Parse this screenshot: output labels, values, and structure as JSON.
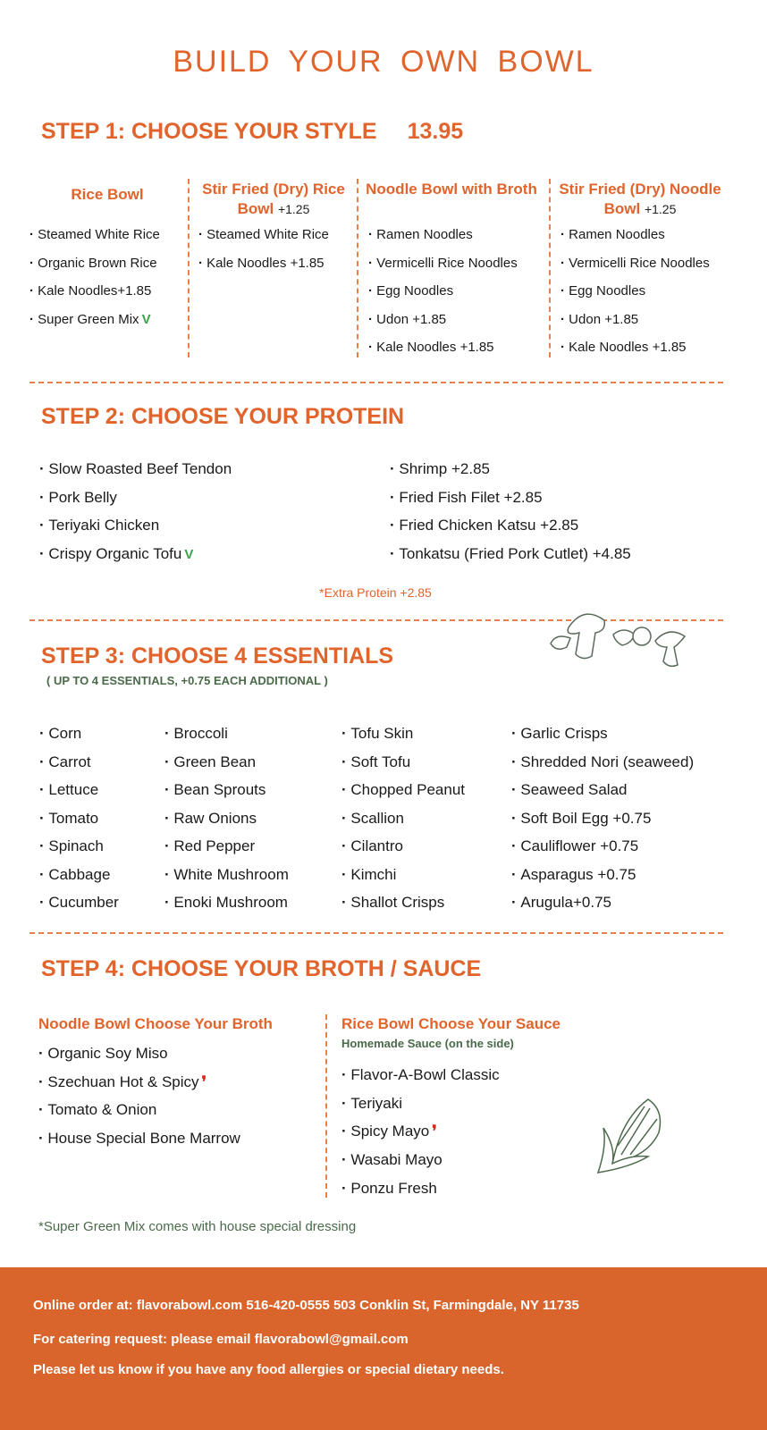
{
  "title": "BUILD YOUR OWN BOWL",
  "step1": {
    "heading": "STEP 1: CHOOSE YOUR STYLE",
    "price": "13.95",
    "columns": [
      {
        "title": "Rice Bowl",
        "add": "",
        "items": [
          "Steamed White Rice",
          "Organic Brown Rice",
          "Kale Noodles+1.85",
          "Super Green Mix"
        ]
      },
      {
        "title": "Stir Fried (Dry) Rice Bowl",
        "add": "+1.25",
        "items": [
          "Steamed White Rice",
          "Kale Noodles +1.85"
        ]
      },
      {
        "title": "Noodle Bowl with Broth",
        "add": "",
        "items": [
          "Ramen Noodles",
          "Vermicelli Rice Noodles",
          "Egg Noodles",
          "Udon +1.85",
          "Kale Noodles +1.85"
        ]
      },
      {
        "title": "Stir Fried (Dry) Noodle Bowl",
        "add": "+1.25",
        "items": [
          "Ramen Noodles",
          "Vermicelli Rice Noodles",
          "Egg Noodles",
          "Udon +1.85",
          "Kale Noodles +1.85"
        ]
      }
    ]
  },
  "step2": {
    "heading": "STEP 2: CHOOSE YOUR PROTEIN",
    "left": [
      "Slow Roasted Beef Tendon",
      "Pork Belly",
      "Teriyaki Chicken",
      "Crispy Organic Tofu"
    ],
    "right": [
      "Shrimp +2.85",
      "Fried Fish Filet +2.85",
      "Fried Chicken Katsu +2.85",
      "Tonkatsu (Fried Pork Cutlet) +4.85"
    ],
    "note": "*Extra Protein +2.85"
  },
  "step3": {
    "heading": "STEP 3: CHOOSE 4 ESSENTIALS",
    "subtitle": "( UP TO 4 ESSENTIALS, +0.75 EACH ADDITIONAL )",
    "columns": [
      [
        "Corn",
        "Carrot",
        "Lettuce",
        "Tomato",
        "Spinach",
        "Cabbage",
        "Cucumber"
      ],
      [
        "Broccoli",
        "Green Bean",
        "Bean Sprouts",
        "Raw Onions",
        "Red Pepper",
        "White Mushroom",
        "Enoki Mushroom"
      ],
      [
        "Tofu Skin",
        "Soft Tofu",
        "Chopped Peanut",
        "Scallion",
        "Cilantro",
        "Kimchi",
        "Shallot Crisps"
      ],
      [
        "Garlic Crisps",
        "Shredded Nori (seaweed)",
        "Seaweed Salad",
        "Soft Boil Egg +0.75",
        "Cauliflower +0.75",
        "Asparagus +0.75",
        "Arugula+0.75"
      ]
    ]
  },
  "step4": {
    "heading": "STEP 4: CHOOSE YOUR BROTH / SAUCE",
    "broth": {
      "title": "Noodle Bowl Choose Your Broth",
      "items": [
        "Organic Soy Miso",
        "Szechuan Hot & Spicy",
        "Tomato & Onion",
        "House Special Bone Marrow"
      ]
    },
    "sauce": {
      "title": "Rice Bowl Choose Your Sauce",
      "subtitle": "Homemade Sauce (on the side)",
      "items": [
        "Flavor-A-Bowl Classic",
        "Teriyaki",
        "Spicy Mayo",
        "Wasabi Mayo",
        "Ponzu Fresh"
      ]
    }
  },
  "footnote": "*Super Green Mix comes with house special dressing",
  "footer": {
    "line1": "Online order at: flavorabowl.com   516-420-0555   503 Conklin St, Farmingdale, NY 11735",
    "line2": "For catering request: please email flavorabowl@gmail.com",
    "line3": "Please let us know if you have any food allergies or special dietary needs."
  },
  "icons": {
    "vegetarian": "leaf-v-icon",
    "spicy": "chili-pepper-icon"
  },
  "colors": {
    "accent": "#e0642c",
    "footer": "#d9652c",
    "green": "#4a6a4a"
  }
}
